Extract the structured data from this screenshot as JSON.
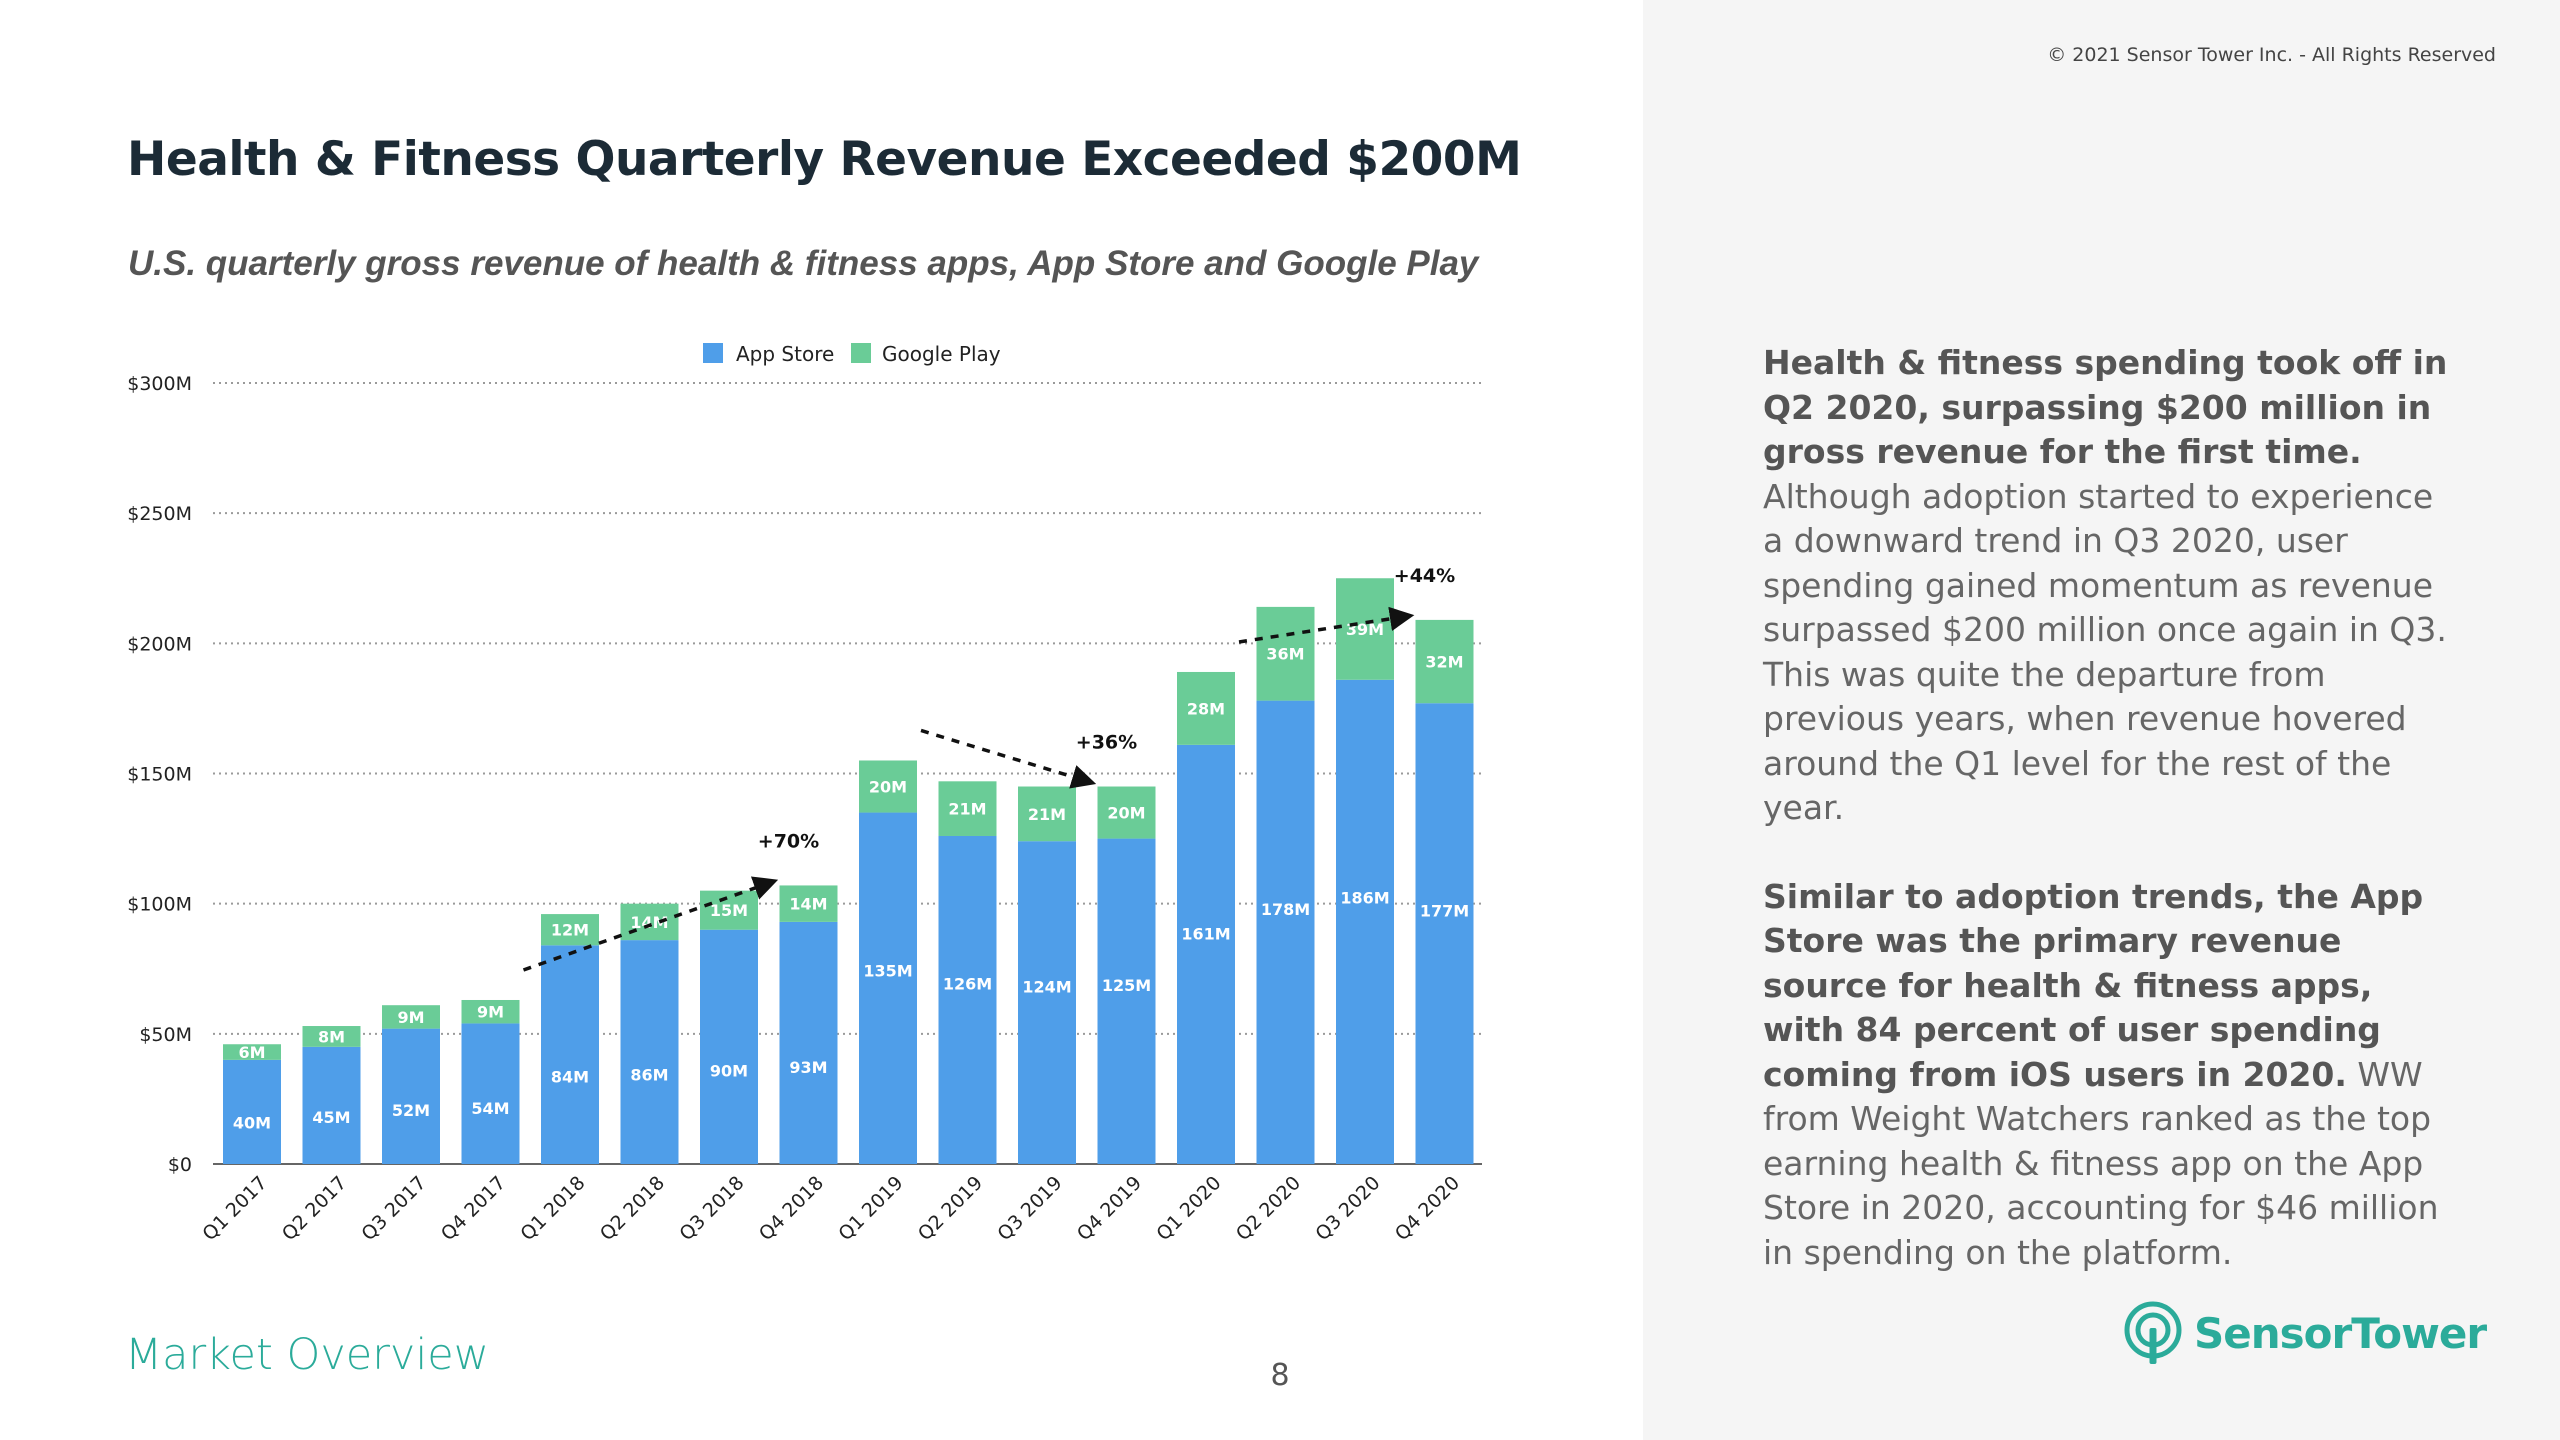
{
  "page": {
    "copyright": "© 2021 Sensor Tower Inc. - All Rights Reserved",
    "title": "Health & Fitness Quarterly Revenue Exceeded $200M",
    "subtitle": "U.S. quarterly gross revenue of health & fitness apps, App Store and Google Play",
    "section": "Market Overview",
    "page_number": "8",
    "logo_text": "SensorTower"
  },
  "commentary": {
    "p1_bold": "Health & fitness spending took off in Q2 2020, surpassing $200 million in gross revenue for the first time.",
    "p1_rest": " Although adoption started to experience a downward trend in Q3 2020, user spending gained momentum as revenue surpassed $200 million once again in Q3. This was quite the departure from previous years, when revenue hovered around the Q1 level for the rest of the year.",
    "p2_bold": "Similar to adoption trends, the App Store was the primary revenue source for health & fitness apps, with 84 percent of user spending coming from iOS users in 2020.",
    "p2_rest": " WW from Weight Watchers ranked as the top earning health & fitness app on the App Store in 2020, accounting for $46 million in spending on the platform."
  },
  "colors": {
    "app_store": "#4f9ee9",
    "google_play": "#6acc97",
    "accent": "#2bab9a"
  },
  "chart_data": {
    "type": "bar",
    "stacked": true,
    "title": "Health & Fitness Quarterly Revenue Exceeded $200M",
    "subtitle": "U.S. quarterly gross revenue of health & fitness apps, App Store and Google Play",
    "categories": [
      "Q1 2017",
      "Q2 2017",
      "Q3 2017",
      "Q4 2017",
      "Q1 2018",
      "Q2 2018",
      "Q3 2018",
      "Q4 2018",
      "Q1 2019",
      "Q2 2019",
      "Q3 2019",
      "Q4 2019",
      "Q1 2020",
      "Q2 2020",
      "Q3 2020",
      "Q4 2020"
    ],
    "series": [
      {
        "name": "App Store",
        "values": [
          40,
          45,
          52,
          54,
          84,
          86,
          90,
          93,
          135,
          126,
          124,
          125,
          161,
          178,
          186,
          177
        ],
        "labels": [
          "40M",
          "45M",
          "52M",
          "54M",
          "84M",
          "86M",
          "90M",
          "93M",
          "135M",
          "126M",
          "124M",
          "125M",
          "161M",
          "178M",
          "186M",
          "177M"
        ]
      },
      {
        "name": "Google Play",
        "values": [
          6,
          8,
          9,
          9,
          12,
          14,
          15,
          14,
          20,
          21,
          21,
          20,
          28,
          36,
          39,
          32
        ],
        "labels": [
          "6M",
          "8M",
          "9M",
          "9M",
          "12M",
          "14M",
          "15M",
          "14M",
          "20M",
          "21M",
          "21M",
          "20M",
          "28M",
          "36M",
          "39M",
          "32M"
        ]
      }
    ],
    "y_ticks": [
      {
        "value": 0,
        "label": "$0"
      },
      {
        "value": 50,
        "label": "$50M"
      },
      {
        "value": 100,
        "label": "$100M"
      },
      {
        "value": 150,
        "label": "$150M"
      },
      {
        "value": 200,
        "label": "$200M"
      },
      {
        "value": 250,
        "label": "$250M"
      },
      {
        "value": 300,
        "label": "$300M"
      }
    ],
    "ylim": [
      0,
      300
    ],
    "grid": true,
    "legend": "top-center",
    "annotations": [
      {
        "from": 3,
        "to": 7,
        "label": "+70%"
      },
      {
        "from": 8,
        "to": 11,
        "label": "+36%"
      },
      {
        "from": 12,
        "to": 15,
        "label": "+44%"
      }
    ]
  }
}
